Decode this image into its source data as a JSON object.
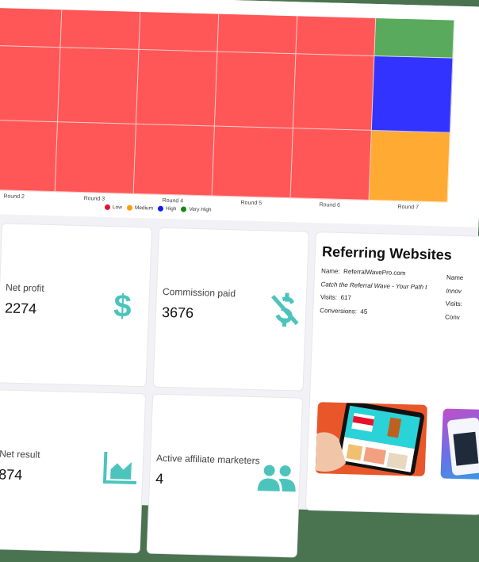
{
  "chart_data": {
    "type": "heatmap",
    "x_categories": [
      "Round 2",
      "Round 3",
      "Round 4",
      "Round 5",
      "Round 6",
      "Round 7"
    ],
    "rows": 3,
    "cells": [
      [
        "Low",
        "Low",
        "Low",
        "Low",
        "Low",
        "Very High"
      ],
      [
        "Low",
        "Low",
        "Low",
        "Low",
        "Low",
        "High"
      ],
      [
        "Low",
        "Low",
        "Low",
        "Low",
        "Low",
        "Medium"
      ]
    ],
    "legend": [
      {
        "label": "Low",
        "color": "#ff5757"
      },
      {
        "label": "Medium",
        "color": "#ffab33"
      },
      {
        "label": "High",
        "color": "#3333ff"
      },
      {
        "label": "Very High",
        "color": "#5aaa5e"
      }
    ],
    "legend_dot_colors": {
      "Low": "#e8112d",
      "Medium": "#ff9d00",
      "High": "#0a1aff",
      "Very High": "#138a13"
    },
    "legend_position": "bottom"
  },
  "cards": {
    "net_profit": {
      "label": "Net profit",
      "value": "2274",
      "icon": "dollar-icon"
    },
    "commission_paid": {
      "label": "Commission paid",
      "value": "3676",
      "icon": "dollar-off-icon"
    },
    "net_result": {
      "label": "Net result",
      "value": "874",
      "icon": "area-chart-icon"
    },
    "active_affiliates": {
      "label": "Active affiliate marketers",
      "value": "4",
      "icon": "users-icon"
    }
  },
  "referring": {
    "title": "Referring Websites",
    "sites": [
      {
        "name_label": "Name:",
        "name": "ReferralWavePro.com",
        "tagline": "Catch the Referral Wave - Your Path t",
        "visits_label": "Visits:",
        "visits": "617",
        "conversions_label": "Conversions:",
        "conversions": "45"
      },
      {
        "name_label": "Name",
        "tagline": "Innov",
        "visits_label": "Visits:",
        "conversions_label": "Conv"
      }
    ]
  },
  "colors": {
    "accent": "#4cc4bc",
    "low": "#ff5757",
    "medium": "#ffab33",
    "high": "#3333ff",
    "very_high": "#5aaa5e"
  }
}
